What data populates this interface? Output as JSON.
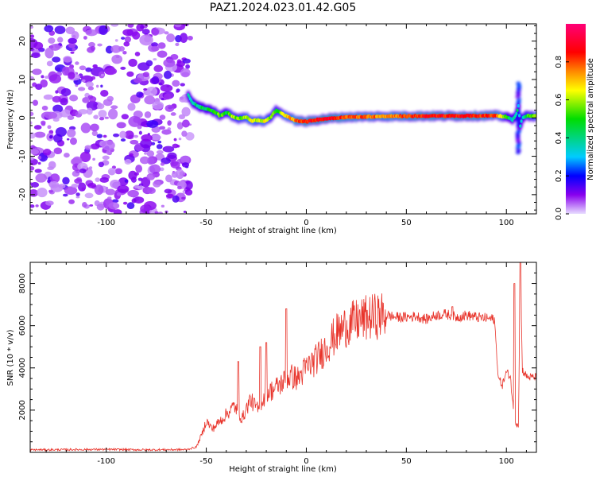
{
  "title": "PAZ1.2024.023.01.42.G05",
  "chart_data": [
    {
      "type": "heatmap",
      "xlabel": "Height of straight line (km)",
      "ylabel": "Frequency (Hz)",
      "xlim": [
        -138,
        115
      ],
      "ylim": [
        -25,
        24.5
      ],
      "x_ticks": [
        -100,
        -50,
        0,
        50,
        100
      ],
      "y_ticks": [
        -20,
        -10,
        0,
        10,
        20
      ],
      "colorbar": {
        "label": "Normalized spectral amplitude",
        "range": [
          0,
          1
        ],
        "ticks": [
          0.0,
          0.2,
          0.4,
          0.6,
          0.8
        ],
        "colors": [
          "#e8ddff",
          "#8800ee",
          "#0000ff",
          "#00ccff",
          "#00dd00",
          "#ffff00",
          "#ff8800",
          "#ff0000",
          "#ff0077"
        ]
      },
      "noise_region_x": [
        -138,
        -58
      ],
      "ridge": {
        "x": [
          -59,
          -57,
          -54,
          -50,
          -46,
          -43,
          -40,
          -37,
          -34,
          -30,
          -27,
          -24,
          -21,
          -18,
          -15,
          -12,
          -9,
          -6,
          -3,
          0,
          5,
          10,
          20,
          40,
          60,
          80,
          95,
          100,
          103,
          105,
          106,
          107,
          108,
          110,
          115
        ],
        "freq": [
          6,
          4,
          3,
          2.3,
          1.6,
          0.5,
          1.5,
          0.5,
          -0.2,
          0.2,
          -0.8,
          -0.6,
          -0.9,
          0.1,
          2,
          1,
          0.3,
          -0.6,
          -0.8,
          -1,
          -0.5,
          -0.2,
          0.2,
          0.4,
          0.5,
          0.5,
          0.6,
          0.3,
          -0.5,
          1,
          3,
          -2,
          0,
          0.5,
          0.5
        ],
        "amp": [
          0.35,
          0.4,
          0.4,
          0.45,
          0.5,
          0.55,
          0.45,
          0.6,
          0.55,
          0.6,
          0.65,
          0.6,
          0.65,
          0.55,
          0.5,
          0.6,
          0.7,
          0.75,
          0.8,
          0.85,
          0.85,
          0.9,
          0.8,
          0.75,
          0.85,
          0.85,
          0.8,
          0.5,
          0.3,
          0.4,
          0.35,
          0.3,
          0.3,
          0.5,
          0.6
        ]
      },
      "spike_x": 106
    },
    {
      "type": "line",
      "xlabel": "Height of straight line (km)",
      "ylabel": "SNR (10 * v/v)",
      "xlim": [
        -138,
        115
      ],
      "ylim": [
        0,
        9000
      ],
      "x_ticks": [
        -100,
        -50,
        0,
        50,
        100
      ],
      "y_ticks": [
        2000,
        4000,
        6000,
        8000
      ],
      "series": [
        {
          "color": "#e8332a",
          "x": [
            -138,
            -120,
            -100,
            -80,
            -60,
            -55,
            -52,
            -50,
            -47,
            -44,
            -40,
            -36,
            -32,
            -28,
            -24,
            -20,
            -16,
            -12,
            -8,
            -4,
            0,
            5,
            10,
            15,
            20,
            25,
            30,
            35,
            40,
            45,
            50,
            55,
            60,
            65,
            70,
            75,
            80,
            85,
            90,
            94,
            96,
            98,
            100,
            102,
            103,
            104,
            105,
            106,
            107,
            108,
            110,
            112,
            115
          ],
          "y": [
            120,
            130,
            140,
            120,
            130,
            250,
            900,
            1500,
            1100,
            1400,
            1800,
            2200,
            1600,
            2500,
            2000,
            2800,
            3000,
            3300,
            3600,
            3500,
            4000,
            4400,
            5000,
            5600,
            6000,
            6200,
            6350,
            6450,
            6500,
            6400,
            6400,
            6450,
            6300,
            6500,
            6550,
            6400,
            6500,
            6400,
            6350,
            6300,
            3500,
            3200,
            3800,
            3600,
            2500,
            1500,
            1400,
            1350,
            9000,
            3900,
            3600,
            3550,
            3550
          ]
        }
      ],
      "spikes": [
        {
          "x": -34,
          "y": 4300
        },
        {
          "x": -23,
          "y": 5000
        },
        {
          "x": -20,
          "y": 5200
        },
        {
          "x": -10,
          "y": 6800
        },
        {
          "x": 73,
          "y": 6900
        },
        {
          "x": 104,
          "y": 8000
        },
        {
          "x": 107,
          "y": 9000
        }
      ],
      "noise_amplitude": 250
    }
  ]
}
